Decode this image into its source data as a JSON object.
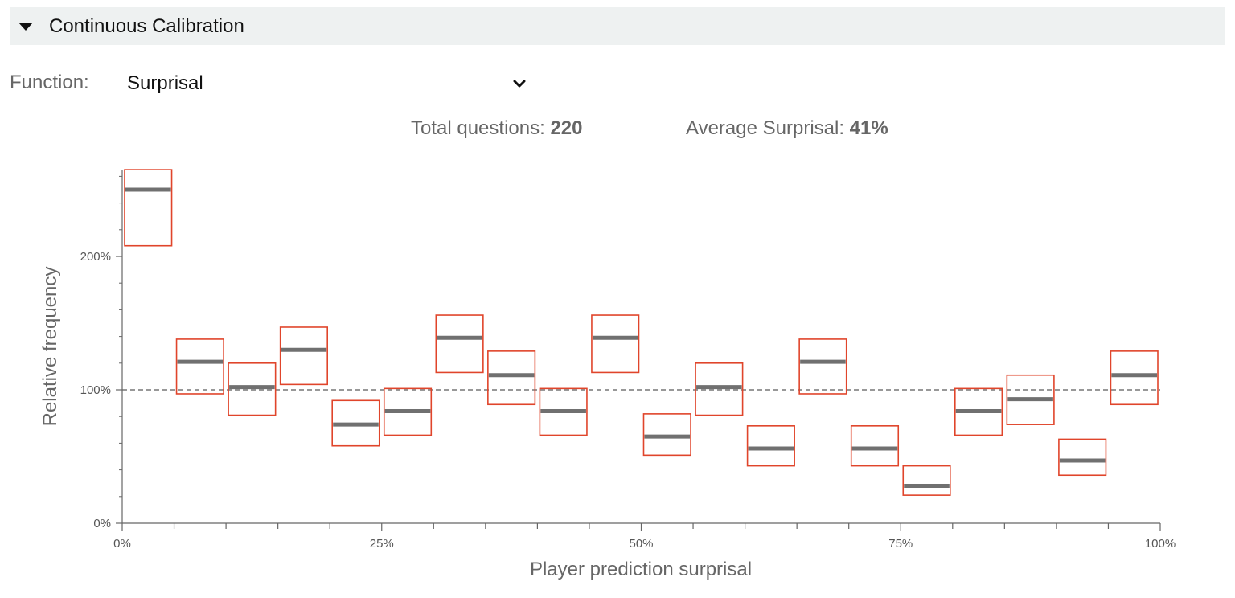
{
  "section": {
    "title": "Continuous Calibration"
  },
  "function_selector": {
    "label": "Function:",
    "value": "Surprisal"
  },
  "stats": {
    "total_label": "Total questions:",
    "total_value": "220",
    "avg_label": "Average Surprisal:",
    "avg_value": "41%"
  },
  "chart_data": {
    "type": "box",
    "xlabel": "Player prediction surprisal",
    "ylabel": "Relative frequency",
    "xlim": [
      0,
      100
    ],
    "ylim": [
      0,
      265
    ],
    "x_ticks": [
      "0%",
      "25%",
      "50%",
      "75%",
      "100%"
    ],
    "x_tick_values": [
      0,
      25,
      50,
      75,
      100
    ],
    "y_ticks": [
      "0%",
      "100%",
      "200%"
    ],
    "y_tick_values": [
      0,
      100,
      200
    ],
    "reference_line": 100,
    "bins": [
      {
        "x0": 0,
        "x1": 5,
        "value": 250,
        "low": 208,
        "high": 265
      },
      {
        "x0": 5,
        "x1": 10,
        "value": 121,
        "low": 97,
        "high": 138
      },
      {
        "x0": 10,
        "x1": 15,
        "value": 102,
        "low": 81,
        "high": 120
      },
      {
        "x0": 15,
        "x1": 20,
        "value": 130,
        "low": 104,
        "high": 147
      },
      {
        "x0": 20,
        "x1": 25,
        "value": 74,
        "low": 58,
        "high": 92
      },
      {
        "x0": 25,
        "x1": 30,
        "value": 84,
        "low": 66,
        "high": 101
      },
      {
        "x0": 30,
        "x1": 35,
        "value": 139,
        "low": 113,
        "high": 156
      },
      {
        "x0": 35,
        "x1": 40,
        "value": 111,
        "low": 89,
        "high": 129
      },
      {
        "x0": 40,
        "x1": 45,
        "value": 84,
        "low": 66,
        "high": 101
      },
      {
        "x0": 45,
        "x1": 50,
        "value": 139,
        "low": 113,
        "high": 156
      },
      {
        "x0": 50,
        "x1": 55,
        "value": 65,
        "low": 51,
        "high": 82
      },
      {
        "x0": 55,
        "x1": 60,
        "value": 102,
        "low": 81,
        "high": 120
      },
      {
        "x0": 60,
        "x1": 65,
        "value": 56,
        "low": 43,
        "high": 73
      },
      {
        "x0": 65,
        "x1": 70,
        "value": 121,
        "low": 97,
        "high": 138
      },
      {
        "x0": 70,
        "x1": 75,
        "value": 56,
        "low": 43,
        "high": 73
      },
      {
        "x0": 75,
        "x1": 80,
        "value": 28,
        "low": 21,
        "high": 43
      },
      {
        "x0": 80,
        "x1": 85,
        "value": 84,
        "low": 66,
        "high": 101
      },
      {
        "x0": 85,
        "x1": 90,
        "value": 93,
        "low": 74,
        "high": 111
      },
      {
        "x0": 90,
        "x1": 95,
        "value": 47,
        "low": 36,
        "high": 63
      },
      {
        "x0": 95,
        "x1": 100,
        "value": 111,
        "low": 89,
        "high": 129
      }
    ],
    "colors": {
      "interval": "#e0452b",
      "median": "#707070",
      "axis": "#666666",
      "reference": "#777777"
    }
  }
}
